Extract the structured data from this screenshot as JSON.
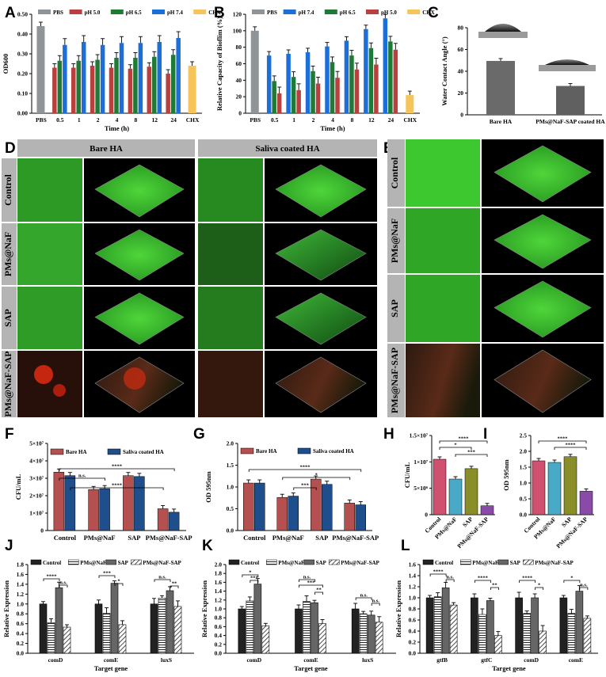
{
  "panel_letters": [
    "A",
    "B",
    "C",
    "D",
    "E",
    "F",
    "G",
    "H",
    "I",
    "J",
    "K",
    "L"
  ],
  "microscopy": {
    "d_headers": [
      "Bare HA",
      "Saliva coated HA"
    ],
    "row_labels": [
      "Control",
      "PMs@NaF",
      "SAP",
      "PMs@NaF-SAP"
    ],
    "e_row_labels": [
      "Control",
      "PMs@NaF",
      "SAP",
      "PMs@NaF-SAP"
    ]
  },
  "colors": {
    "gray": "#8e9498",
    "red": "#b8403f",
    "blue": "#1c6fd8",
    "green": "#1f7a35",
    "yellow": "#f6c55a",
    "bar_red": "#b45050",
    "bar_navy": "#1f4e8c",
    "pink": "#d05070",
    "teal": "#49aac8",
    "olive": "#8a8e28",
    "purple": "#8a4aa8",
    "dark": "#3a3a3a"
  },
  "chart_data": [
    {
      "panel": "A",
      "type": "bar",
      "ylabel": "OD600",
      "xlabel": "Time (h)",
      "ylim": [
        0,
        0.5
      ],
      "yticks": [
        "0.00",
        "0.10",
        "0.20",
        "0.30",
        "0.40",
        "0.50"
      ],
      "legend": [
        "PBS",
        "pH 5.0",
        "pH 6.5",
        "pH 7.4",
        "CHX"
      ],
      "groups": [
        {
          "label": "PBS",
          "bars": [
            {
              "s": "PBS",
              "v": 0.44
            }
          ]
        },
        {
          "label": "0.5",
          "bars": [
            {
              "s": "pH 5.0",
              "v": 0.23
            },
            {
              "s": "pH 6.5",
              "v": 0.265
            },
            {
              "s": "pH 7.4",
              "v": 0.345
            }
          ]
        },
        {
          "label": "1",
          "bars": [
            {
              "s": "pH 5.0",
              "v": 0.23
            },
            {
              "s": "pH 6.5",
              "v": 0.265
            },
            {
              "s": "pH 7.4",
              "v": 0.36
            }
          ]
        },
        {
          "label": "2",
          "bars": [
            {
              "s": "pH 5.0",
              "v": 0.24
            },
            {
              "s": "pH 6.5",
              "v": 0.27
            },
            {
              "s": "pH 7.4",
              "v": 0.345
            }
          ]
        },
        {
          "label": "4",
          "bars": [
            {
              "s": "pH 5.0",
              "v": 0.23
            },
            {
              "s": "pH 6.5",
              "v": 0.28
            },
            {
              "s": "pH 7.4",
              "v": 0.355
            }
          ]
        },
        {
          "label": "8",
          "bars": [
            {
              "s": "pH 5.0",
              "v": 0.225
            },
            {
              "s": "pH 6.5",
              "v": 0.28
            },
            {
              "s": "pH 7.4",
              "v": 0.355
            }
          ]
        },
        {
          "label": "12",
          "bars": [
            {
              "s": "pH 5.0",
              "v": 0.235
            },
            {
              "s": "pH 6.5",
              "v": 0.285
            },
            {
              "s": "pH 7.4",
              "v": 0.36
            }
          ]
        },
        {
          "label": "24",
          "bars": [
            {
              "s": "pH 5.0",
              "v": 0.2
            },
            {
              "s": "pH 6.5",
              "v": 0.295
            },
            {
              "s": "pH 7.4",
              "v": 0.38
            }
          ]
        },
        {
          "label": "CHX",
          "bars": [
            {
              "s": "CHX",
              "v": 0.24
            }
          ]
        }
      ]
    },
    {
      "panel": "B",
      "type": "bar",
      "ylabel": "Relative Capacity of Bioflim (%)",
      "xlabel": "Time (h)",
      "ylim": [
        0,
        120
      ],
      "yticks": [
        "0",
        "20",
        "40",
        "60",
        "80",
        "100",
        "120"
      ],
      "legend": [
        "PBS",
        "pH 7.4",
        "pH 6.5",
        "pH 5.0",
        "CHX"
      ],
      "groups": [
        {
          "label": "PBS",
          "bars": [
            {
              "s": "PBS",
              "v": 100
            }
          ]
        },
        {
          "label": "0.5",
          "bars": [
            {
              "s": "pH 7.4",
              "v": 70
            },
            {
              "s": "pH 6.5",
              "v": 39
            },
            {
              "s": "pH 5.0",
              "v": 24
            }
          ]
        },
        {
          "label": "1",
          "bars": [
            {
              "s": "pH 7.4",
              "v": 72
            },
            {
              "s": "pH 6.5",
              "v": 44
            },
            {
              "s": "pH 5.0",
              "v": 28
            }
          ]
        },
        {
          "label": "2",
          "bars": [
            {
              "s": "pH 7.4",
              "v": 74
            },
            {
              "s": "pH 6.5",
              "v": 51
            },
            {
              "s": "pH 5.0",
              "v": 36
            }
          ]
        },
        {
          "label": "4",
          "bars": [
            {
              "s": "pH 7.4",
              "v": 81
            },
            {
              "s": "pH 6.5",
              "v": 62
            },
            {
              "s": "pH 5.0",
              "v": 43
            }
          ]
        },
        {
          "label": "8",
          "bars": [
            {
              "s": "pH 7.4",
              "v": 88
            },
            {
              "s": "pH 6.5",
              "v": 70
            },
            {
              "s": "pH 5.0",
              "v": 53
            }
          ]
        },
        {
          "label": "12",
          "bars": [
            {
              "s": "pH 7.4",
              "v": 102
            },
            {
              "s": "pH 6.5",
              "v": 79
            },
            {
              "s": "pH 5.0",
              "v": 59
            }
          ]
        },
        {
          "label": "24",
          "bars": [
            {
              "s": "pH 7.4",
              "v": 115
            },
            {
              "s": "pH 6.5",
              "v": 87
            },
            {
              "s": "pH 5.0",
              "v": 77
            }
          ]
        },
        {
          "label": "CHX",
          "bars": [
            {
              "s": "CHX",
              "v": 22
            }
          ]
        }
      ]
    },
    {
      "panel": "C",
      "type": "bar",
      "ylabel": "Water Contact Angle (°)",
      "ylim": [
        0,
        80
      ],
      "yticks": [
        "0",
        "20",
        "40",
        "60",
        "80"
      ],
      "categories": [
        "Bare HA",
        "PMs@NaF-SAP coated HA"
      ],
      "values": [
        49.5,
        26.5
      ]
    },
    {
      "panel": "F",
      "type": "bar",
      "ylabel": "CFU/mL",
      "ylim": [
        0,
        50000000.0
      ],
      "yticks": [
        "0",
        "1×10⁷",
        "2×10⁷",
        "3×10⁷",
        "4×10⁷",
        "5×10⁷"
      ],
      "legend": [
        "Bare HA",
        "Saliva coated HA"
      ],
      "categories": [
        "Control",
        "PMs@NaF",
        "SAP",
        "PMs@NaF-SAP"
      ],
      "series": [
        {
          "name": "Bare HA",
          "values": [
            33500000.0,
            23500000.0,
            31500000.0,
            12500000.0
          ]
        },
        {
          "name": "Saliva coated HA",
          "values": [
            31500000.0,
            24000000.0,
            31000000.0,
            10500000.0
          ]
        }
      ],
      "annotations": [
        "****",
        "n.s.",
        "****"
      ]
    },
    {
      "panel": "G",
      "type": "bar",
      "ylabel": "OD 595nm",
      "ylim": [
        0,
        2.0
      ],
      "yticks": [
        "0.0",
        "0.5",
        "1.0",
        "1.5",
        "2.0"
      ],
      "legend": [
        "Bare HA",
        "Saliva coated HA"
      ],
      "categories": [
        "Control",
        "PMs@NaF",
        "SAP",
        "PMs@NaF-SAP"
      ],
      "series": [
        {
          "name": "Bare HA",
          "values": [
            1.09,
            0.76,
            1.18,
            0.63
          ]
        },
        {
          "name": "Saliva coated HA",
          "values": [
            1.09,
            0.79,
            1.06,
            0.59
          ]
        }
      ],
      "annotations": [
        "****",
        "*",
        "***"
      ]
    },
    {
      "panel": "H",
      "type": "bar",
      "ylabel": "CFU/mL",
      "ylim": [
        0,
        16000000.0
      ],
      "yticks": [
        "0",
        "5×10⁶",
        "1×10⁷",
        "1.5×10⁷"
      ],
      "categories": [
        "Control",
        "PMs@NaF",
        "SAP",
        "PMs@NaF-SAP"
      ],
      "values": [
        11200000.0,
        7200000.0,
        9300000.0,
        1800000.0
      ],
      "annotations": [
        "****",
        "*",
        "***"
      ]
    },
    {
      "panel": "I",
      "type": "bar",
      "ylabel": "OD 595nm",
      "ylim": [
        0,
        2.5
      ],
      "yticks": [
        "0.0",
        "0.5",
        "1.0",
        "1.5",
        "2.0",
        "2.5"
      ],
      "categories": [
        "Control",
        "PMs@NaF",
        "SAP",
        "PMs@NaF-SAP"
      ],
      "values": [
        1.7,
        1.65,
        1.83,
        0.74
      ],
      "annotations": [
        "****",
        "****"
      ]
    },
    {
      "panel": "J",
      "type": "bar",
      "ylabel": "Relative Expression",
      "xlabel": "Target gene",
      "ylim": [
        0,
        1.8
      ],
      "yticks": [
        "0.0",
        "0.2",
        "0.4",
        "0.6",
        "0.8",
        "1.0",
        "1.2",
        "1.4",
        "1.6",
        "1.8"
      ],
      "legend": [
        "Control",
        "PMs@NaF",
        "SAP",
        "PMs@NaF-SAP"
      ],
      "categories": [
        "comD",
        "comE",
        "luxS"
      ],
      "series": [
        {
          "name": "Control",
          "values": [
            1.0,
            1.0,
            1.0
          ]
        },
        {
          "name": "PMs@NaF",
          "values": [
            0.62,
            0.81,
            1.12
          ]
        },
        {
          "name": "SAP",
          "values": [
            1.33,
            1.42,
            1.27
          ]
        },
        {
          "name": "PMs@NaF-SAP",
          "values": [
            0.53,
            0.58,
            0.95
          ]
        }
      ],
      "annotations": [
        "****",
        "n.s.",
        "***",
        "*",
        "n.s.",
        "**"
      ]
    },
    {
      "panel": "K",
      "type": "bar",
      "ylabel": "Relative Expression",
      "xlabel": "Target gene",
      "ylim": [
        0,
        2.0
      ],
      "yticks": [
        "0.0",
        "0.2",
        "0.4",
        "0.6",
        "0.8",
        "1.0",
        "1.2",
        "1.4",
        "1.6",
        "1.8",
        "2.0"
      ],
      "legend": [
        "Control",
        "PMs@NaF",
        "SAP",
        "PMs@NaF-SAP"
      ],
      "categories": [
        "comD",
        "comE",
        "luxS"
      ],
      "series": [
        {
          "name": "Control",
          "values": [
            1.0,
            1.0,
            1.0
          ]
        },
        {
          "name": "PMs@NaF",
          "values": [
            1.18,
            1.17,
            0.89
          ]
        },
        {
          "name": "SAP",
          "values": [
            1.56,
            1.14,
            0.86
          ]
        },
        {
          "name": "PMs@NaF-SAP",
          "values": [
            0.62,
            0.67,
            0.7
          ]
        }
      ],
      "annotations": [
        "*",
        "***",
        "n.s.",
        "***",
        "**",
        "n.s.",
        "n.s."
      ]
    },
    {
      "panel": "L",
      "type": "bar",
      "ylabel": "Relative Expression",
      "xlabel": "Target gene",
      "ylim": [
        0,
        1.6
      ],
      "yticks": [
        "0.0",
        "0.2",
        "0.4",
        "0.6",
        "0.8",
        "1.0",
        "1.2",
        "1.4",
        "1.6"
      ],
      "legend": [
        "Control",
        "PMs@NaF",
        "SAP",
        "PMs@NaF-SAP"
      ],
      "categories": [
        "gtfB",
        "gtfC",
        "comD",
        "comE"
      ],
      "series": [
        {
          "name": "Control",
          "values": [
            1.0,
            1.0,
            1.0,
            1.0
          ]
        },
        {
          "name": "PMs@NaF",
          "values": [
            1.02,
            0.7,
            0.72,
            0.72
          ]
        },
        {
          "name": "SAP",
          "values": [
            1.18,
            0.95,
            1.0,
            1.12
          ]
        },
        {
          "name": "PMs@NaF-SAP",
          "values": [
            0.87,
            0.32,
            0.4,
            0.63
          ]
        }
      ],
      "annotations": [
        "****",
        "n.s.",
        "****",
        "**",
        "****",
        "*",
        "*",
        "n.s."
      ]
    }
  ]
}
